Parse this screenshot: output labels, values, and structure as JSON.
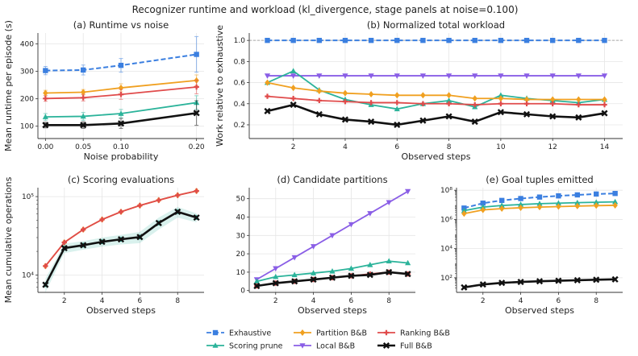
{
  "figure": {
    "title": "Recognizer runtime and workload (kl_divergence, stage panels at noise=0.100)"
  },
  "series_styles": {
    "Exhaustive": {
      "color": "#3b7fe0",
      "marker": "square",
      "dash": true
    },
    "Scoring prune": {
      "color": "#2bb39a",
      "marker": "triangle-up",
      "dash": false
    },
    "Partition B&B": {
      "color": "#f0a020",
      "marker": "diamond",
      "dash": false
    },
    "Local B&B": {
      "color": "#8a5ee6",
      "marker": "triangle-down",
      "dash": false
    },
    "Ranking B&B": {
      "color": "#e04b4b",
      "marker": "plus",
      "dash": false
    },
    "Full B&B": {
      "color": "#111111",
      "marker": "x",
      "dash": false
    }
  },
  "legend": {
    "entries": [
      "Exhaustive",
      "Scoring prune",
      "Partition B&B",
      "Local B&B",
      "Ranking B&B",
      "Full B&B"
    ]
  },
  "chart_data": [
    {
      "id": "a",
      "type": "line",
      "title": "(a) Runtime vs noise",
      "xlabel": "Noise probability",
      "ylabel": "Mean runtime per episode (s)",
      "xlim": [
        -0.01,
        0.21
      ],
      "ylim": [
        55,
        440
      ],
      "xticks": [
        0.0,
        0.05,
        0.1,
        0.2
      ],
      "xtick_labels": [
        "0.00",
        "0.05",
        "0.10",
        "0.20"
      ],
      "yticks": [
        100,
        200,
        300,
        400
      ],
      "ytick_labels": [
        "100",
        "200",
        "300",
        "400"
      ],
      "grid": true,
      "x": [
        0.0,
        0.05,
        0.1,
        0.2
      ],
      "series": [
        {
          "name": "Exhaustive",
          "values": [
            303,
            305,
            322,
            362
          ],
          "err": [
            15,
            18,
            25,
            65
          ]
        },
        {
          "name": "Partition B&B",
          "values": [
            221,
            224,
            240,
            267
          ],
          "err": [
            10,
            10,
            15,
            20
          ]
        },
        {
          "name": "Ranking B&B",
          "values": [
            201,
            204,
            216,
            243
          ],
          "err": [
            10,
            12,
            18,
            25
          ]
        },
        {
          "name": "Scoring prune",
          "values": [
            134,
            136,
            146,
            186
          ],
          "err": [
            12,
            14,
            15,
            25
          ]
        },
        {
          "name": "Full B&B",
          "values": [
            104,
            104,
            110,
            148
          ],
          "err": [
            10,
            12,
            18,
            45
          ]
        }
      ]
    },
    {
      "id": "b",
      "type": "line",
      "title": "(b) Normalized total workload",
      "xlabel": "Observed steps",
      "ylabel": "Work relative to exhaustive",
      "xlim": [
        0.3,
        14.7
      ],
      "ylim": [
        0.07,
        1.07
      ],
      "xticks": [
        2,
        4,
        6,
        8,
        10,
        12,
        14
      ],
      "xtick_labels": [
        "2",
        "4",
        "6",
        "8",
        "10",
        "12",
        "14"
      ],
      "yticks": [
        0.2,
        0.4,
        0.6,
        0.8,
        1.0
      ],
      "ytick_labels": [
        "0.2",
        "0.4",
        "0.6",
        "0.8",
        "1.0"
      ],
      "grid": true,
      "reference_line": 1.0,
      "x": [
        1,
        2,
        3,
        4,
        5,
        6,
        7,
        8,
        9,
        10,
        11,
        12,
        13,
        14
      ],
      "series": [
        {
          "name": "Exhaustive",
          "values": [
            1,
            1,
            1,
            1,
            1,
            1,
            1,
            1,
            1,
            1,
            1,
            1,
            1,
            1
          ]
        },
        {
          "name": "Local B&B",
          "values": [
            0.665,
            0.665,
            0.665,
            0.665,
            0.665,
            0.665,
            0.665,
            0.665,
            0.665,
            0.665,
            0.665,
            0.665,
            0.665,
            0.665
          ]
        },
        {
          "name": "Scoring prune",
          "values": [
            0.6,
            0.71,
            0.53,
            0.44,
            0.39,
            0.35,
            0.4,
            0.43,
            0.37,
            0.48,
            0.45,
            0.43,
            0.41,
            0.44
          ]
        },
        {
          "name": "Partition B&B",
          "values": [
            0.6,
            0.55,
            0.52,
            0.5,
            0.49,
            0.48,
            0.48,
            0.48,
            0.45,
            0.45,
            0.44,
            0.44,
            0.44,
            0.44
          ]
        },
        {
          "name": "Ranking B&B",
          "values": [
            0.47,
            0.45,
            0.43,
            0.42,
            0.41,
            0.41,
            0.4,
            0.4,
            0.39,
            0.4,
            0.4,
            0.4,
            0.39,
            0.39
          ]
        },
        {
          "name": "Full B&B",
          "values": [
            0.33,
            0.39,
            0.3,
            0.25,
            0.23,
            0.2,
            0.24,
            0.28,
            0.23,
            0.32,
            0.3,
            0.28,
            0.27,
            0.31
          ]
        }
      ]
    },
    {
      "id": "c",
      "type": "line",
      "title": "(c) Scoring evaluations",
      "xlabel": "Observed steps",
      "ylabel": "Mean cumulative operations",
      "yscale": "log",
      "xlim": [
        0.6,
        9.4
      ],
      "ylim": [
        6000,
        130000
      ],
      "xticks": [
        2,
        4,
        6,
        8
      ],
      "xtick_labels": [
        "2",
        "4",
        "6",
        "8"
      ],
      "yticks": [
        10000,
        100000
      ],
      "ytick_labels": [
        "10⁴",
        "10⁵"
      ],
      "grid": true,
      "x": [
        1,
        2,
        3,
        4,
        5,
        6,
        7,
        8,
        9
      ],
      "series": [
        {
          "name": "Partition B&B",
          "values": [
            13000,
            26000,
            38000,
            51000,
            64000,
            77000,
            90000,
            104000,
            118000
          ]
        },
        {
          "name": "Ranking B&B",
          "values": [
            13000,
            26000,
            38000,
            51000,
            64000,
            77000,
            90000,
            104000,
            118000
          ]
        },
        {
          "name": "Scoring prune",
          "values": [
            7500,
            22000,
            24000,
            26500,
            28500,
            30500,
            46000,
            64000,
            54000
          ],
          "band": [
            1500,
            3000,
            3000,
            3500,
            4000,
            5000,
            8000,
            10000,
            7000
          ]
        },
        {
          "name": "Full B&B",
          "values": [
            7500,
            22000,
            24000,
            26500,
            28500,
            30500,
            46000,
            64000,
            54000
          ]
        }
      ]
    },
    {
      "id": "d",
      "type": "line",
      "title": "(d) Candidate partitions",
      "xlabel": "Observed steps",
      "ylabel": "",
      "xlim": [
        0.6,
        9.4
      ],
      "ylim": [
        -1,
        56
      ],
      "xticks": [
        2,
        4,
        6,
        8
      ],
      "xtick_labels": [
        "2",
        "4",
        "6",
        "8"
      ],
      "yticks": [
        0,
        10,
        20,
        30,
        40,
        50
      ],
      "ytick_labels": [
        "0",
        "10",
        "20",
        "30",
        "40",
        "50"
      ],
      "grid": true,
      "x": [
        1,
        2,
        3,
        4,
        5,
        6,
        7,
        8,
        9
      ],
      "series": [
        {
          "name": "Local B&B",
          "values": [
            6,
            12,
            18,
            24,
            30,
            36,
            42,
            48,
            54
          ]
        },
        {
          "name": "Scoring prune",
          "values": [
            5,
            7.5,
            8.5,
            9.5,
            10.5,
            12,
            14,
            16,
            15
          ]
        },
        {
          "name": "Ranking B&B",
          "values": [
            2.5,
            4,
            5,
            6,
            7,
            8,
            9,
            10,
            9
          ]
        },
        {
          "name": "Full B&B",
          "values": [
            2.5,
            4,
            5,
            6,
            7,
            8,
            8.5,
            10,
            9
          ]
        }
      ]
    },
    {
      "id": "e",
      "type": "line",
      "title": "(e) Goal tuples emitted",
      "xlabel": "Observed steps",
      "ylabel": "",
      "yscale": "log",
      "xlim": [
        0.6,
        9.4
      ],
      "ylim": [
        10,
        150000000
      ],
      "xticks": [
        2,
        4,
        6,
        8
      ],
      "xtick_labels": [
        "2",
        "4",
        "6",
        "8"
      ],
      "yticks": [
        100,
        10000,
        1000000,
        100000000
      ],
      "ytick_labels": [
        "10²",
        "10⁴",
        "10⁶",
        "10⁸"
      ],
      "grid": true,
      "x": [
        1,
        2,
        3,
        4,
        5,
        6,
        7,
        8,
        9
      ],
      "series": [
        {
          "name": "Exhaustive",
          "values": [
            6000000,
            13000000,
            20000000,
            27000000,
            34000000,
            41000000,
            48000000,
            55000000,
            60000000
          ]
        },
        {
          "name": "Scoring prune",
          "values": [
            4000000,
            7000000,
            9000000,
            10500000,
            12000000,
            13000000,
            14000000,
            15000000,
            16000000
          ]
        },
        {
          "name": "Partition B&B",
          "values": [
            2500000,
            4500000,
            5500000,
            6300000,
            7000000,
            7600000,
            8200000,
            8800000,
            9200000
          ]
        },
        {
          "name": "Full B&B",
          "values": [
            22,
            35,
            45,
            52,
            58,
            63,
            68,
            73,
            78
          ]
        }
      ]
    }
  ]
}
